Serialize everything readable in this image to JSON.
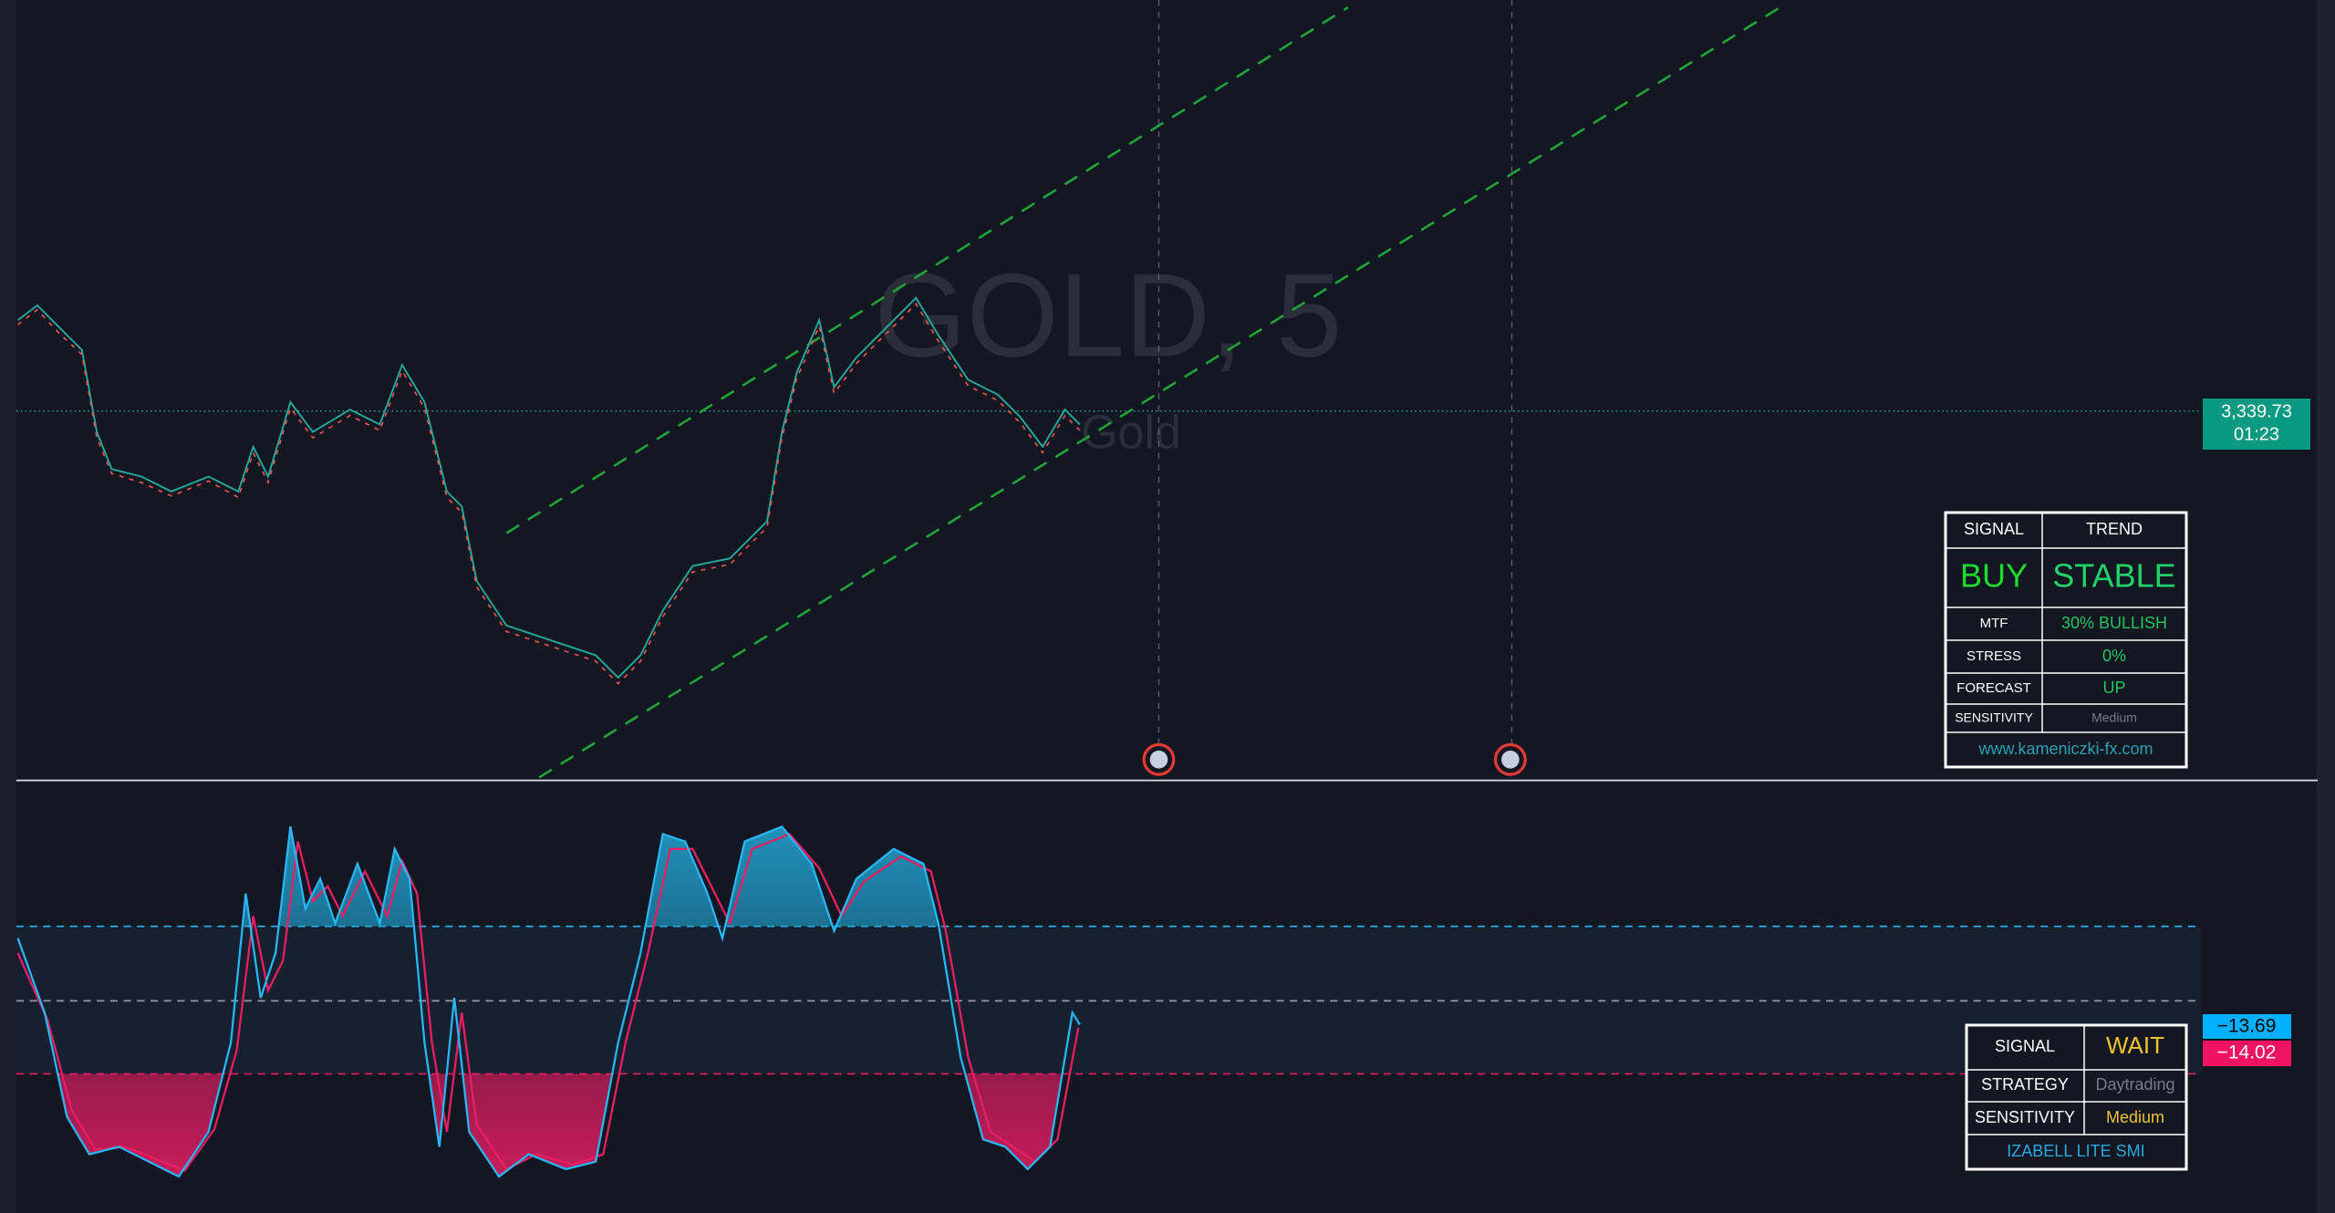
{
  "watermark": {
    "symbol": "GOLD, 5",
    "description": "Gold"
  },
  "price_label": {
    "price": "3,339.73",
    "countdown": "01:23"
  },
  "signal_table": {
    "header": [
      "SIGNAL",
      "TREND"
    ],
    "main": [
      "BUY",
      "STABLE"
    ],
    "rows": [
      [
        "MTF",
        "30% BULLISH"
      ],
      [
        "STRESS",
        "0%"
      ],
      [
        "FORECAST",
        "UP"
      ],
      [
        "SENSITIVITY",
        "Medium"
      ]
    ],
    "footer": "www.kameniczki-fx.com"
  },
  "oscillator_table": {
    "rows": [
      [
        "SIGNAL",
        "WAIT"
      ],
      [
        "STRATEGY",
        "Daytrading"
      ],
      [
        "SENSITIVITY",
        "Medium"
      ]
    ],
    "footer": "IZABELL LITE SMI"
  },
  "oscillator_labels": [
    "−13.69",
    "−14.02"
  ]
}
